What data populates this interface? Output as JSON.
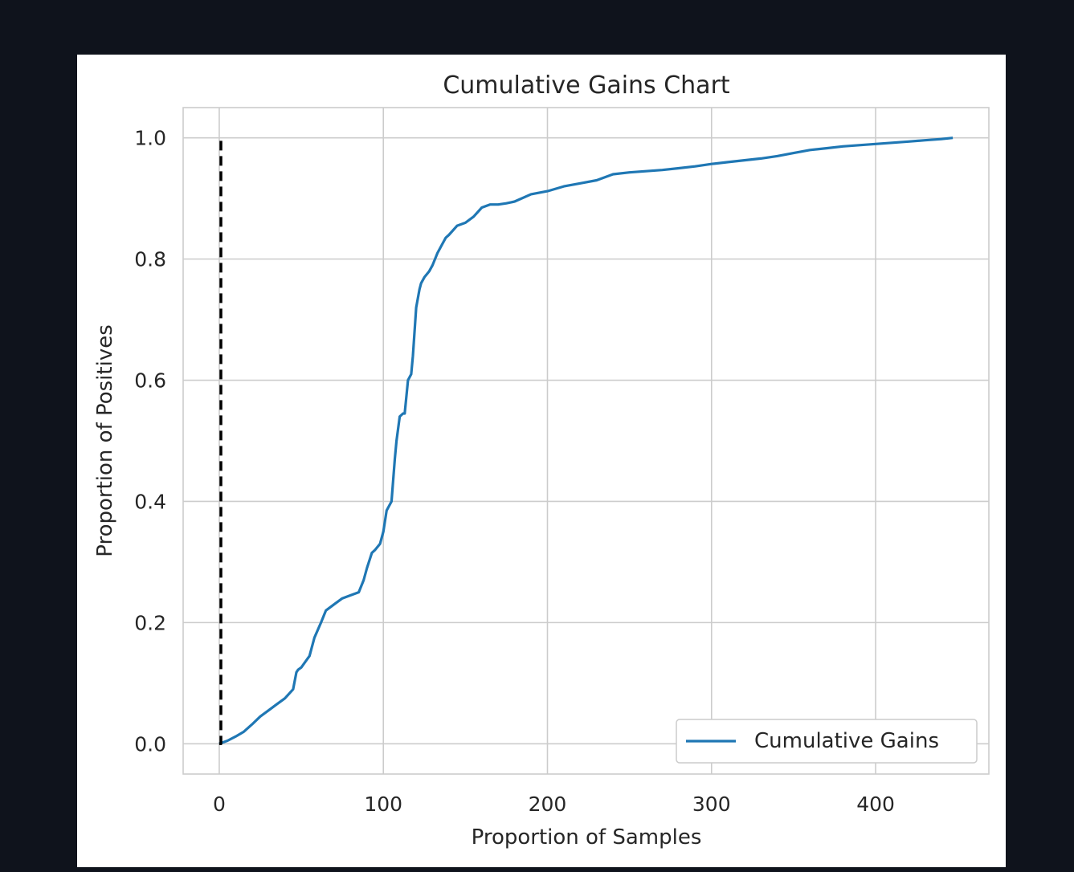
{
  "chart_data": {
    "type": "line",
    "title": "Cumulative Gains Chart",
    "xlabel": "Proportion of Samples",
    "ylabel": "Proportion of Positives",
    "xlim": [
      -22,
      469
    ],
    "ylim": [
      -0.05,
      1.05
    ],
    "xticks": [
      0,
      100,
      200,
      300,
      400
    ],
    "xtick_labels": [
      "0",
      "100",
      "200",
      "300",
      "400"
    ],
    "yticks": [
      0.0,
      0.2,
      0.4,
      0.6,
      0.8,
      1.0
    ],
    "ytick_labels": [
      "0.0",
      "0.2",
      "0.4",
      "0.6",
      "0.8",
      "1.0"
    ],
    "grid": true,
    "legend_position": "lower-right",
    "series": [
      {
        "name": "Cumulative Gains",
        "color": "#1f77b4",
        "style": "solid",
        "x": [
          0,
          5,
          10,
          15,
          20,
          25,
          30,
          35,
          40,
          45,
          47,
          48,
          50,
          55,
          58,
          62,
          65,
          70,
          75,
          80,
          85,
          88,
          90,
          93,
          95,
          98,
          100,
          102,
          105,
          107,
          108,
          110,
          112,
          113,
          115,
          117,
          118,
          120,
          122,
          123,
          125,
          128,
          130,
          133,
          135,
          138,
          140,
          145,
          150,
          155,
          160,
          165,
          170,
          175,
          180,
          190,
          200,
          210,
          220,
          230,
          240,
          250,
          260,
          270,
          280,
          290,
          300,
          310,
          320,
          330,
          340,
          350,
          360,
          370,
          380,
          390,
          400,
          410,
          420,
          430,
          440,
          447
        ],
        "y": [
          0.0,
          0.005,
          0.012,
          0.02,
          0.032,
          0.045,
          0.055,
          0.065,
          0.075,
          0.09,
          0.118,
          0.122,
          0.126,
          0.145,
          0.175,
          0.2,
          0.22,
          0.23,
          0.24,
          0.245,
          0.25,
          0.27,
          0.29,
          0.315,
          0.32,
          0.33,
          0.35,
          0.385,
          0.4,
          0.47,
          0.5,
          0.54,
          0.545,
          0.545,
          0.6,
          0.61,
          0.64,
          0.72,
          0.75,
          0.76,
          0.77,
          0.78,
          0.79,
          0.81,
          0.82,
          0.835,
          0.84,
          0.855,
          0.86,
          0.87,
          0.885,
          0.89,
          0.89,
          0.892,
          0.895,
          0.907,
          0.912,
          0.92,
          0.925,
          0.93,
          0.94,
          0.943,
          0.945,
          0.947,
          0.95,
          0.953,
          0.957,
          0.96,
          0.963,
          0.966,
          0.97,
          0.975,
          0.98,
          0.983,
          0.986,
          0.988,
          0.99,
          0.992,
          0.994,
          0.996,
          0.998,
          1.0
        ]
      },
      {
        "name": "",
        "color": "#000000",
        "style": "dashed",
        "x": [
          0,
          1,
          1
        ],
        "y": [
          0.0,
          0.0,
          1.0
        ]
      }
    ]
  }
}
